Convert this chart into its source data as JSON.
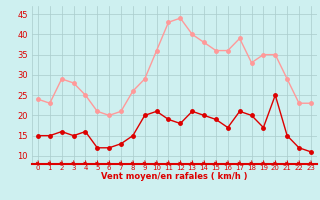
{
  "hours": [
    0,
    1,
    2,
    3,
    4,
    5,
    6,
    7,
    8,
    9,
    10,
    11,
    12,
    13,
    14,
    15,
    16,
    17,
    18,
    19,
    20,
    21,
    22,
    23
  ],
  "vent_moyen": [
    15,
    15,
    16,
    15,
    16,
    12,
    12,
    13,
    15,
    20,
    21,
    19,
    18,
    21,
    20,
    19,
    17,
    21,
    20,
    17,
    25,
    15,
    12,
    11
  ],
  "en_rafales": [
    24,
    23,
    29,
    28,
    25,
    21,
    20,
    21,
    26,
    29,
    36,
    43,
    44,
    40,
    38,
    36,
    36,
    39,
    33,
    35,
    35,
    29,
    23,
    23
  ],
  "bg_color": "#cef0f0",
  "grid_color": "#aacccc",
  "line_color_moyen": "#dd0000",
  "line_color_rafales": "#ff9999",
  "xlabel": "Vent moyen/en rafales ( km/h )",
  "ylabel_ticks": [
    10,
    15,
    20,
    25,
    30,
    35,
    40,
    45
  ],
  "ylim": [
    8,
    47
  ],
  "xlim": [
    -0.5,
    23.5
  ],
  "marker_size": 2.5,
  "linewidth": 1.0,
  "tick_label_color": "#dd0000",
  "axis_label_color": "#dd0000",
  "arrow_color": "#dd0000",
  "spine_color": "#dd0000"
}
